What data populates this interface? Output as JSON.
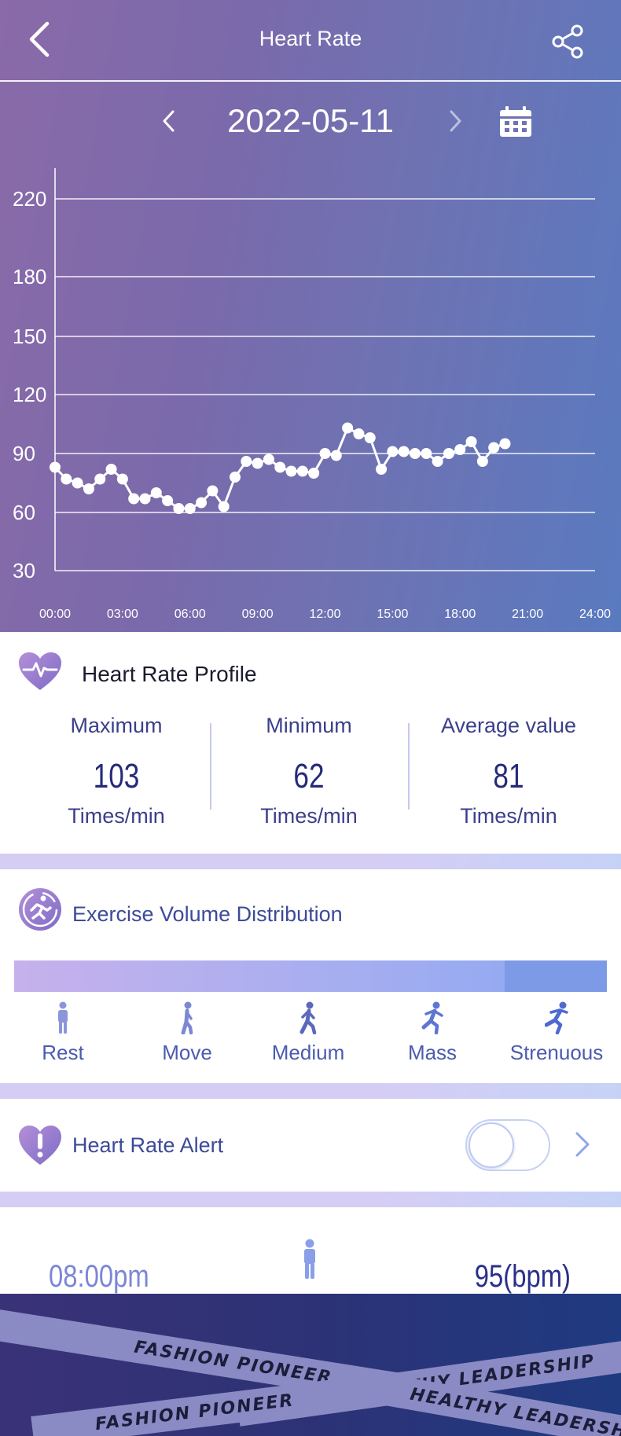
{
  "header": {
    "title": "Heart Rate"
  },
  "date_nav": {
    "date": "2022-05-11"
  },
  "chart_data": {
    "type": "line",
    "y_ticks": [
      "220",
      "180",
      "150",
      "120",
      "90",
      "60",
      "30"
    ],
    "x_ticks": [
      "00:00",
      "03:00",
      "06:00",
      "09:00",
      "12:00",
      "15:00",
      "18:00",
      "21:00",
      "24:00"
    ],
    "ylim": [
      30,
      220
    ],
    "xlim": [
      0,
      24
    ],
    "grid": true,
    "line_color": "#ffffff",
    "x": [
      0.0,
      0.5,
      1.0,
      1.5,
      2.0,
      2.5,
      3.0,
      3.5,
      4.0,
      4.5,
      5.0,
      5.5,
      6.0,
      6.5,
      7.0,
      7.5,
      8.0,
      8.5,
      9.0,
      9.5,
      10.0,
      10.5,
      11.0,
      11.5,
      12.0,
      12.5,
      13.0,
      13.5,
      14.0,
      14.5,
      15.0,
      15.5,
      16.0,
      16.5,
      17.0,
      17.5,
      18.0,
      18.5,
      19.0,
      19.5,
      20.0
    ],
    "values": [
      83,
      77,
      75,
      72,
      77,
      82,
      77,
      67,
      67,
      70,
      66,
      62,
      62,
      65,
      71,
      63,
      78,
      86,
      85,
      87,
      83,
      81,
      81,
      80,
      90,
      89,
      103,
      100,
      98,
      82,
      91,
      91,
      90,
      90,
      86,
      90,
      92,
      96,
      86,
      93,
      95
    ]
  },
  "profile": {
    "title": "Heart Rate Profile",
    "stats": [
      {
        "label": "Maximum",
        "value": "103",
        "unit": "Times/min"
      },
      {
        "label": "Minimum",
        "value": "62",
        "unit": "Times/min"
      },
      {
        "label": "Average value",
        "value": "81",
        "unit": "Times/min"
      }
    ]
  },
  "exercise": {
    "title": "Exercise Volume Distribution",
    "distribution": {
      "low_to_high_fraction": 0.83
    },
    "levels": [
      {
        "label": "Rest",
        "icon": "standing-person-icon",
        "color": "#8a95dc"
      },
      {
        "label": "Move",
        "icon": "walking-person-icon",
        "color": "#7d88d2"
      },
      {
        "label": "Medium",
        "icon": "brisk-walking-person-icon",
        "color": "#5b68bd"
      },
      {
        "label": "Mass",
        "icon": "jogging-person-icon",
        "color": "#5d76d6"
      },
      {
        "label": "Strenuous",
        "icon": "sprinting-person-icon",
        "color": "#4e6ad1"
      }
    ]
  },
  "alert": {
    "title": "Heart Rate Alert",
    "enabled": false
  },
  "record": {
    "time": "08:00pm",
    "icon": "standing-person-icon",
    "value": "95(bpm)"
  },
  "footer": {
    "tape_1": "FASHION PIONEER",
    "tape_2": "HEALTHY LEADERSHIP",
    "tape_3": "FASHION PIONEER",
    "tape_4": "HEALTHY LEADERSHIP"
  }
}
